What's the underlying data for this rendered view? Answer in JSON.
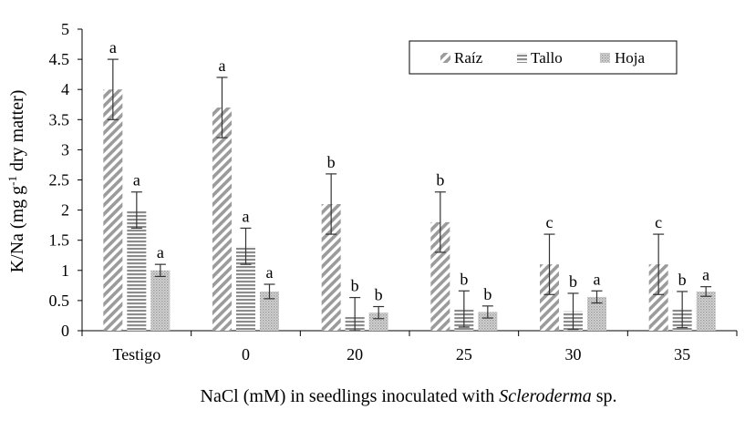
{
  "chart_data": {
    "type": "bar",
    "title": "",
    "xlabel_plain": "NaCl (mM) in seedlings inoculated with ",
    "xlabel_italic": "Scleroderma",
    "xlabel_tail": " sp.",
    "ylabel_main": "K/Na (mg g",
    "ylabel_sup": "-1",
    "ylabel_tail": " dry matter)",
    "ylim": [
      0,
      5
    ],
    "yticks": [
      "0",
      "0.5",
      "1",
      "1.5",
      "2",
      "2.5",
      "3",
      "3.5",
      "4",
      "4.5",
      "5"
    ],
    "grid": false,
    "legend_position": "top-right",
    "categories": [
      "Testigo",
      "0",
      "20",
      "25",
      "30",
      "35"
    ],
    "series": [
      {
        "name": "Raíz",
        "pattern": "diagonal-stripes",
        "color": "#a6a6a6",
        "values": [
          4.0,
          3.7,
          2.1,
          1.8,
          1.1,
          1.1
        ],
        "errors": [
          0.5,
          0.5,
          0.5,
          0.5,
          0.5,
          0.5
        ],
        "letters": [
          "a",
          "a",
          "b",
          "b",
          "c",
          "c"
        ]
      },
      {
        "name": "Tallo",
        "pattern": "horizontal-stripes",
        "color": "#a6a6a6",
        "values": [
          2.0,
          1.4,
          0.25,
          0.36,
          0.32,
          0.35
        ],
        "errors": [
          0.3,
          0.3,
          0.3,
          0.3,
          0.3,
          0.3
        ],
        "letters": [
          "a",
          "a",
          "b",
          "b",
          "b",
          "b"
        ]
      },
      {
        "name": "Hoja",
        "pattern": "dots",
        "color": "#a6a6a6",
        "values": [
          1.0,
          0.65,
          0.3,
          0.31,
          0.56,
          0.65
        ],
        "errors": [
          0.1,
          0.12,
          0.1,
          0.1,
          0.1,
          0.08
        ],
        "letters": [
          "a",
          "a",
          "b",
          "b",
          "a",
          "a"
        ]
      }
    ]
  }
}
